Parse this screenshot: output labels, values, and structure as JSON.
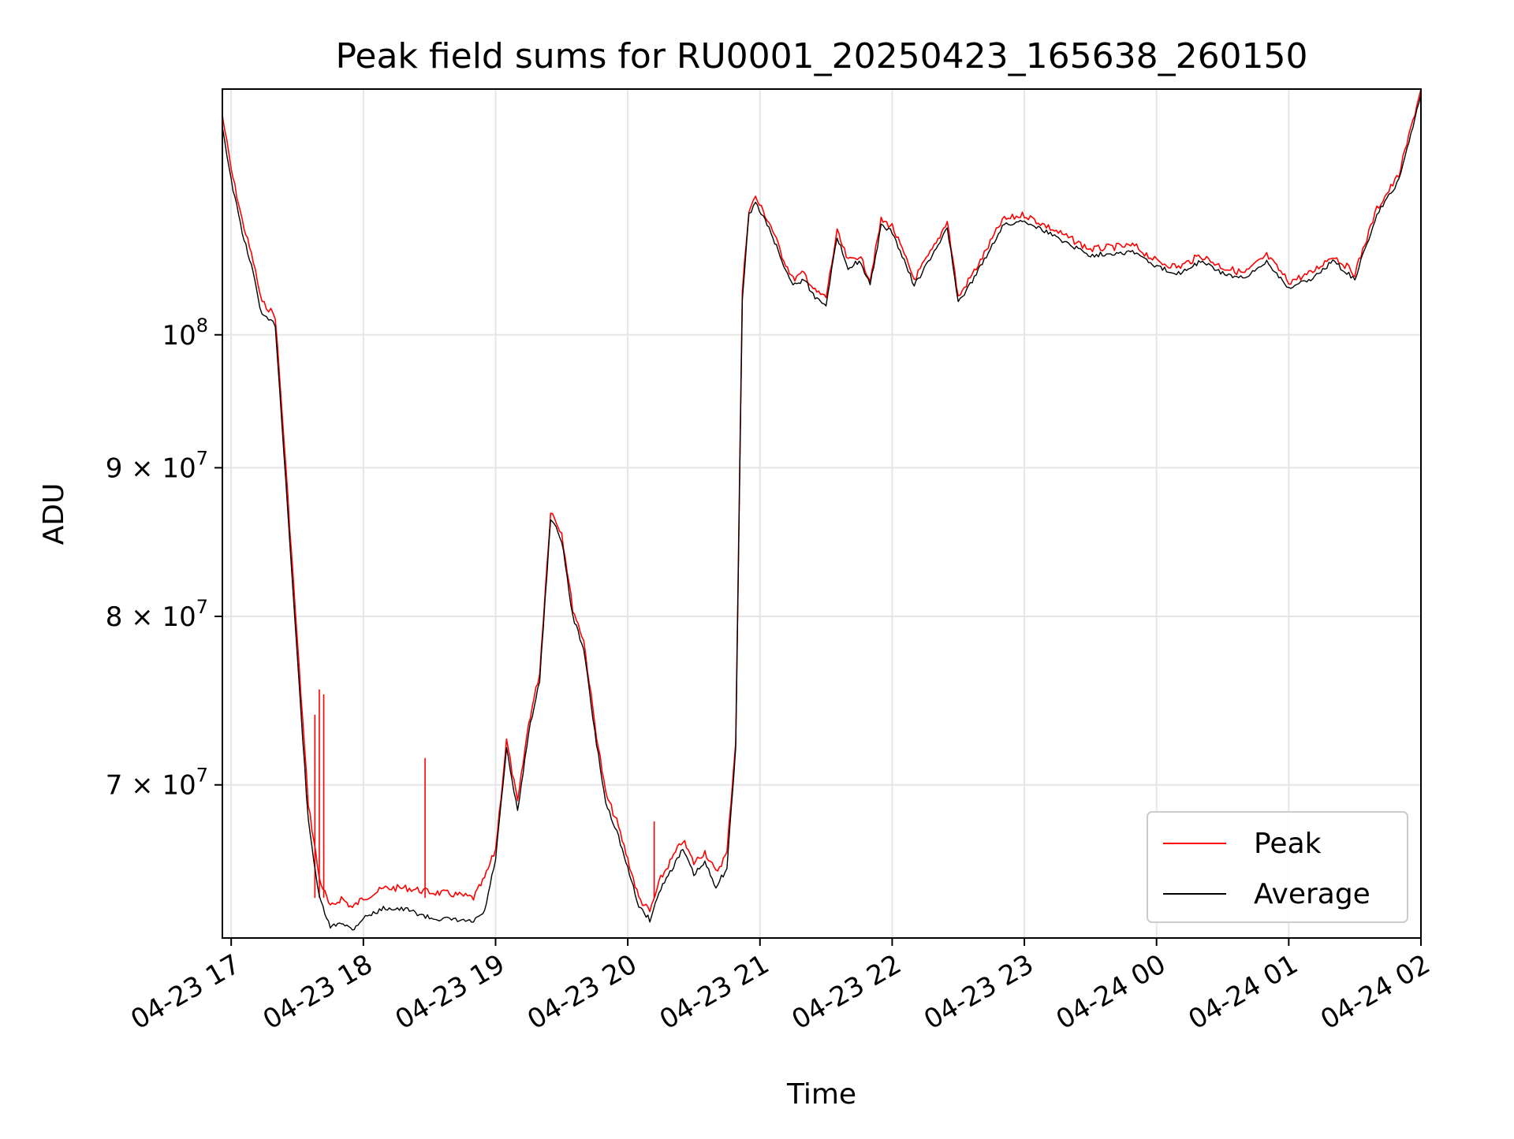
{
  "chart_data": {
    "type": "line",
    "title": "Peak field sums for RU0001_20250423_165638_260150",
    "xlabel": "Time",
    "ylabel": "ADU",
    "yscale": "log",
    "grid": true,
    "legend_position": "lower-right",
    "xlim": [
      "2025-04-23 16:56",
      "2025-04-24 02:00"
    ],
    "ylim": [
      62000000,
      121500000
    ],
    "x_ticks": [
      {
        "value": "2025-04-23 17:00",
        "label": "04-23 17"
      },
      {
        "value": "2025-04-23 18:00",
        "label": "04-23 18"
      },
      {
        "value": "2025-04-23 19:00",
        "label": "04-23 19"
      },
      {
        "value": "2025-04-23 20:00",
        "label": "04-23 20"
      },
      {
        "value": "2025-04-23 21:00",
        "label": "04-23 21"
      },
      {
        "value": "2025-04-23 22:00",
        "label": "04-23 22"
      },
      {
        "value": "2025-04-23 23:00",
        "label": "04-23 23"
      },
      {
        "value": "2025-04-24 00:00",
        "label": "04-24 00"
      },
      {
        "value": "2025-04-24 01:00",
        "label": "04-24 01"
      },
      {
        "value": "2025-04-24 02:00",
        "label": "04-24 02"
      }
    ],
    "y_ticks": [
      {
        "value": 100000000,
        "mantissa": "",
        "base": "10",
        "exp": "8"
      },
      {
        "value": 90000000,
        "mantissa": "9 × ",
        "base": "10",
        "exp": "7"
      },
      {
        "value": 80000000,
        "mantissa": "8 × ",
        "base": "10",
        "exp": "7"
      },
      {
        "value": 70000000,
        "mantissa": "7 × ",
        "base": "10",
        "exp": "7"
      }
    ],
    "series": [
      {
        "name": "Average",
        "color": "#000000",
        "x": [
          "2025-04-23 16:56",
          "2025-04-23 17:00",
          "2025-04-23 17:05",
          "2025-04-23 17:10",
          "2025-04-23 17:14",
          "2025-04-23 17:16",
          "2025-04-23 17:20",
          "2025-04-23 17:24",
          "2025-04-23 17:30",
          "2025-04-23 17:35",
          "2025-04-23 17:40",
          "2025-04-23 17:45",
          "2025-04-23 17:50",
          "2025-04-23 17:55",
          "2025-04-23 18:00",
          "2025-04-23 18:10",
          "2025-04-23 18:20",
          "2025-04-23 18:30",
          "2025-04-23 18:40",
          "2025-04-23 18:50",
          "2025-04-23 18:55",
          "2025-04-23 19:00",
          "2025-04-23 19:05",
          "2025-04-23 19:10",
          "2025-04-23 19:15",
          "2025-04-23 19:20",
          "2025-04-23 19:25",
          "2025-04-23 19:30",
          "2025-04-23 19:35",
          "2025-04-23 19:40",
          "2025-04-23 19:45",
          "2025-04-23 19:50",
          "2025-04-23 19:55",
          "2025-04-23 20:00",
          "2025-04-23 20:05",
          "2025-04-23 20:10",
          "2025-04-23 20:15",
          "2025-04-23 20:20",
          "2025-04-23 20:25",
          "2025-04-23 20:30",
          "2025-04-23 20:35",
          "2025-04-23 20:40",
          "2025-04-23 20:45",
          "2025-04-23 20:49",
          "2025-04-23 20:52",
          "2025-04-23 20:55",
          "2025-04-23 20:58",
          "2025-04-23 21:05",
          "2025-04-23 21:10",
          "2025-04-23 21:15",
          "2025-04-23 21:20",
          "2025-04-23 21:25",
          "2025-04-23 21:30",
          "2025-04-23 21:35",
          "2025-04-23 21:40",
          "2025-04-23 21:45",
          "2025-04-23 21:50",
          "2025-04-23 21:55",
          "2025-04-23 22:00",
          "2025-04-23 22:10",
          "2025-04-23 22:20",
          "2025-04-23 22:25",
          "2025-04-23 22:30",
          "2025-04-23 22:40",
          "2025-04-23 22:50",
          "2025-04-23 23:00",
          "2025-04-23 23:10",
          "2025-04-23 23:20",
          "2025-04-23 23:30",
          "2025-04-23 23:40",
          "2025-04-23 23:50",
          "2025-04-24 00:00",
          "2025-04-24 00:10",
          "2025-04-24 00:20",
          "2025-04-24 00:30",
          "2025-04-24 00:40",
          "2025-04-24 00:50",
          "2025-04-24 01:00",
          "2025-04-24 01:10",
          "2025-04-24 01:20",
          "2025-04-24 01:30",
          "2025-04-24 01:40",
          "2025-04-24 01:50",
          "2025-04-24 02:00"
        ],
        "values": [
          118000000,
          113000000,
          108500000,
          105000000,
          101500000,
          101300000,
          100800000,
          91000000,
          77500000,
          68000000,
          64000000,
          62500000,
          62800000,
          62400000,
          63000000,
          63500000,
          63400000,
          63000000,
          62900000,
          62800000,
          63300000,
          66000000,
          72000000,
          68500000,
          73000000,
          76000000,
          86500000,
          85000000,
          80000000,
          78000000,
          73000000,
          69000000,
          67500000,
          65500000,
          63600000,
          62900000,
          64500000,
          65500000,
          66500000,
          65200000,
          65800000,
          64600000,
          65500000,
          72000000,
          103000000,
          110000000,
          111000000,
          108500000,
          106000000,
          104000000,
          104500000,
          103000000,
          102500000,
          108000000,
          105500000,
          106000000,
          104000000,
          109000000,
          108500000,
          104000000,
          107000000,
          109000000,
          102500000,
          105500000,
          109000000,
          109500000,
          108500000,
          107500000,
          106500000,
          106700000,
          106800000,
          105500000,
          105000000,
          106000000,
          105000000,
          104500000,
          106000000,
          103800000,
          104500000,
          106000000,
          104500000,
          110000000,
          113000000,
          121000000
        ]
      },
      {
        "name": "Peak",
        "color": "#ff0000",
        "x": [
          "2025-04-23 16:56",
          "2025-04-23 17:00",
          "2025-04-23 17:05",
          "2025-04-23 17:10",
          "2025-04-23 17:14",
          "2025-04-23 17:16",
          "2025-04-23 17:20",
          "2025-04-23 17:24",
          "2025-04-23 17:30",
          "2025-04-23 17:35",
          "2025-04-23 17:40",
          "2025-04-23 17:45",
          "2025-04-23 17:50",
          "2025-04-23 17:55",
          "2025-04-23 18:00",
          "2025-04-23 18:10",
          "2025-04-23 18:20",
          "2025-04-23 18:30",
          "2025-04-23 18:40",
          "2025-04-23 18:50",
          "2025-04-23 18:55",
          "2025-04-23 19:00",
          "2025-04-23 19:05",
          "2025-04-23 19:10",
          "2025-04-23 19:15",
          "2025-04-23 19:20",
          "2025-04-23 19:25",
          "2025-04-23 19:30",
          "2025-04-23 19:35",
          "2025-04-23 19:40",
          "2025-04-23 19:45",
          "2025-04-23 19:50",
          "2025-04-23 19:55",
          "2025-04-23 20:00",
          "2025-04-23 20:05",
          "2025-04-23 20:10",
          "2025-04-23 20:15",
          "2025-04-23 20:20",
          "2025-04-23 20:25",
          "2025-04-23 20:30",
          "2025-04-23 20:35",
          "2025-04-23 20:40",
          "2025-04-23 20:45",
          "2025-04-23 20:49",
          "2025-04-23 20:52",
          "2025-04-23 20:55",
          "2025-04-23 20:58",
          "2025-04-23 21:05",
          "2025-04-23 21:10",
          "2025-04-23 21:15",
          "2025-04-23 21:20",
          "2025-04-23 21:25",
          "2025-04-23 21:30",
          "2025-04-23 21:35",
          "2025-04-23 21:40",
          "2025-04-23 21:45",
          "2025-04-23 21:50",
          "2025-04-23 21:55",
          "2025-04-23 22:00",
          "2025-04-23 22:10",
          "2025-04-23 22:20",
          "2025-04-23 22:25",
          "2025-04-23 22:30",
          "2025-04-23 22:40",
          "2025-04-23 22:50",
          "2025-04-23 23:00",
          "2025-04-23 23:10",
          "2025-04-23 23:20",
          "2025-04-23 23:30",
          "2025-04-23 23:40",
          "2025-04-23 23:50",
          "2025-04-24 00:00",
          "2025-04-24 00:10",
          "2025-04-24 00:20",
          "2025-04-24 00:30",
          "2025-04-24 00:40",
          "2025-04-24 00:50",
          "2025-04-24 01:00",
          "2025-04-24 01:10",
          "2025-04-24 01:20",
          "2025-04-24 01:30",
          "2025-04-24 01:40",
          "2025-04-24 01:50",
          "2025-04-24 02:00"
        ],
        "values": [
          119000000,
          114000000,
          109500000,
          106000000,
          102500000,
          102300000,
          101500000,
          92000000,
          78500000,
          69000000,
          65000000,
          63500000,
          64000000,
          63500000,
          64000000,
          64500000,
          64500000,
          64300000,
          64200000,
          64000000,
          65000000,
          66500000,
          72500000,
          69000000,
          73500000,
          76500000,
          87000000,
          85500000,
          80500000,
          78500000,
          73500000,
          69500000,
          68000000,
          66000000,
          64000000,
          63300000,
          65000000,
          66000000,
          67000000,
          65800000,
          66400000,
          65300000,
          66300000,
          72500000,
          103500000,
          110500000,
          111500000,
          109000000,
          106500000,
          104500000,
          105000000,
          103500000,
          103000000,
          108500000,
          106000000,
          106500000,
          104500000,
          109500000,
          109000000,
          104500000,
          107500000,
          109500000,
          103000000,
          106000000,
          109500000,
          110000000,
          109000000,
          108000000,
          107000000,
          107200000,
          107300000,
          106000000,
          105500000,
          106500000,
          105500000,
          105000000,
          106500000,
          104300000,
          105000000,
          106500000,
          105000000,
          110500000,
          113500000,
          121500000
        ],
        "spikes": [
          {
            "x": "2025-04-23 17:40",
            "value": 75500000
          },
          {
            "x": "2025-04-23 17:42",
            "value": 75200000
          },
          {
            "x": "2025-04-23 17:38",
            "value": 74000000
          },
          {
            "x": "2025-04-23 18:28",
            "value": 71500000
          },
          {
            "x": "2025-04-23 20:12",
            "value": 68000000
          }
        ]
      }
    ],
    "legend": [
      {
        "name": "Peak",
        "color": "#ff0000"
      },
      {
        "name": "Average",
        "color": "#000000"
      }
    ]
  }
}
